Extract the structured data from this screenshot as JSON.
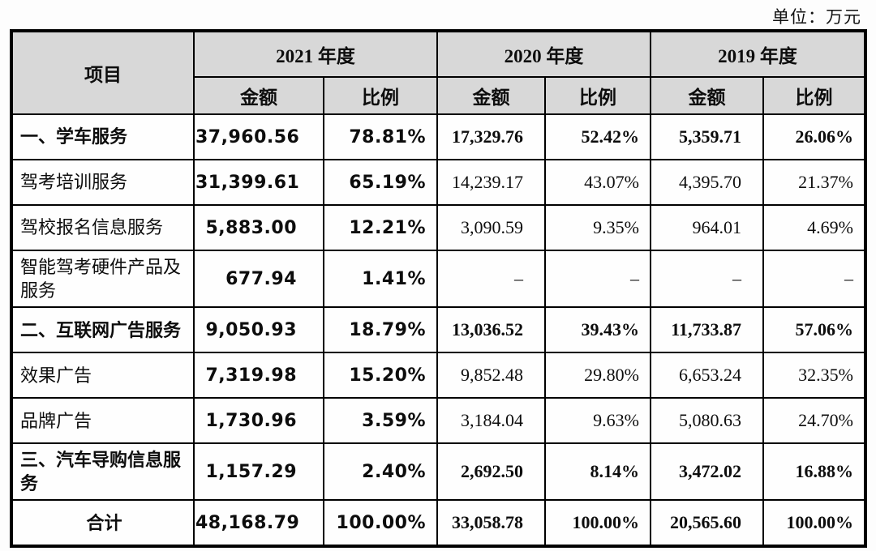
{
  "unit_label": "单位：万元",
  "table": {
    "header": {
      "item": "项目",
      "year_groups": [
        {
          "label": "2021 年度"
        },
        {
          "label": "2020 年度"
        },
        {
          "label": "2019 年度"
        }
      ],
      "amount": "金额",
      "ratio": "比例"
    },
    "rows": [
      {
        "label": "一、学车服务",
        "bold": true,
        "total": false,
        "cells": [
          "37,960.56",
          "78.81%",
          "17,329.76",
          "52.42%",
          "5,359.71",
          "26.06%"
        ]
      },
      {
        "label": "驾考培训服务",
        "bold": false,
        "total": false,
        "cells": [
          "31,399.61",
          "65.19%",
          "14,239.17",
          "43.07%",
          "4,395.70",
          "21.37%"
        ]
      },
      {
        "label": "驾校报名信息服务",
        "bold": false,
        "total": false,
        "cells": [
          "5,883.00",
          "12.21%",
          "3,090.59",
          "9.35%",
          "964.01",
          "4.69%"
        ]
      },
      {
        "label": "智能驾考硬件产品及服务",
        "bold": false,
        "total": false,
        "cells": [
          "677.94",
          "1.41%",
          "–",
          "–",
          "–",
          "–"
        ]
      },
      {
        "label": "二、互联网广告服务",
        "bold": true,
        "total": false,
        "cells": [
          "9,050.93",
          "18.79%",
          "13,036.52",
          "39.43%",
          "11,733.87",
          "57.06%"
        ]
      },
      {
        "label": "效果广告",
        "bold": false,
        "total": false,
        "cells": [
          "7,319.98",
          "15.20%",
          "9,852.48",
          "29.80%",
          "6,653.24",
          "32.35%"
        ]
      },
      {
        "label": "品牌广告",
        "bold": false,
        "total": false,
        "cells": [
          "1,730.96",
          "3.59%",
          "3,184.04",
          "9.63%",
          "5,080.63",
          "24.70%"
        ]
      },
      {
        "label": "三、汽车导购信息服务",
        "bold": true,
        "total": false,
        "cells": [
          "1,157.29",
          "2.40%",
          "2,692.50",
          "8.14%",
          "3,472.02",
          "16.88%"
        ]
      },
      {
        "label": "合计",
        "bold": true,
        "total": true,
        "cells": [
          "48,168.79",
          "100.00%",
          "33,058.78",
          "100.00%",
          "20,565.60",
          "100.00%"
        ]
      }
    ]
  },
  "colors": {
    "header_bg": "#d8d8d8",
    "border": "#000000",
    "page_bg": "#fdfdfd"
  }
}
